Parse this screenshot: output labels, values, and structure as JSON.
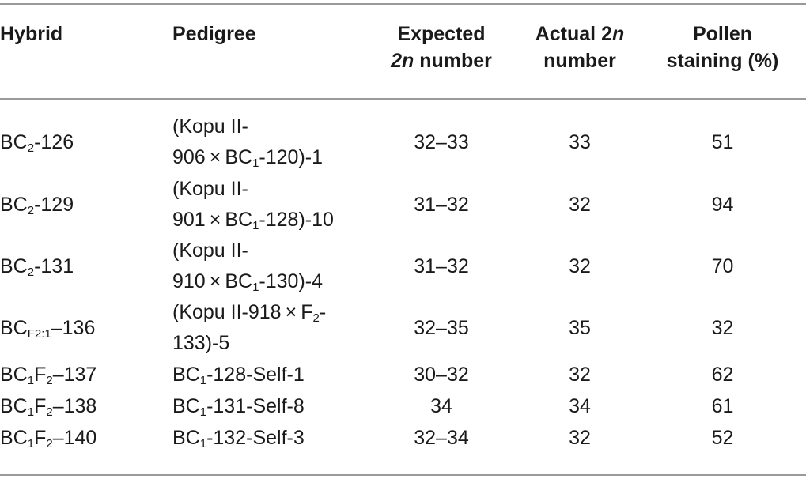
{
  "headers": {
    "hybrid": "Hybrid",
    "pedigree": "Pedigree",
    "expected_line1": "Expected",
    "expected_line2_italic": "2n",
    "expected_line2_rest": " number",
    "actual_line1_prefix": "Actual 2",
    "actual_line1_italic": "n",
    "actual_line2": "number",
    "pollen_line1": "Pollen",
    "pollen_line2": "staining (%)"
  },
  "rows": [
    {
      "hybrid": {
        "pre": "BC",
        "sub": "2",
        "post": "-126"
      },
      "pedigree": {
        "line1": "(Kopu II-",
        "line2_pre": "906 × BC",
        "line2_sub": "1",
        "line2_post": "-120)-1"
      },
      "expected": "32–33",
      "actual": "33",
      "pollen": "51"
    },
    {
      "hybrid": {
        "pre": "BC",
        "sub": "2",
        "post": "-129"
      },
      "pedigree": {
        "line1": "(Kopu II-",
        "line2_pre": "901 × BC",
        "line2_sub": "1",
        "line2_post": "-128)-10"
      },
      "expected": "31–32",
      "actual": "32",
      "pollen": "94"
    },
    {
      "hybrid": {
        "pre": "BC",
        "sub": "2",
        "post": "-131"
      },
      "pedigree": {
        "line1": "(Kopu II-",
        "line2_pre": "910 × BC",
        "line2_sub": "1",
        "line2_post": "-130)-4"
      },
      "expected": "31–32",
      "actual": "32",
      "pollen": "70"
    },
    {
      "hybrid": {
        "pre": "BC",
        "sub": "F2:1",
        "post": "–136"
      },
      "pedigree": {
        "line1_pre": "(Kopu II-918 × F",
        "line1_sub": "2",
        "line1_post": "-",
        "line2": "133)-5"
      },
      "expected": "32–35",
      "actual": "35",
      "pollen": "32"
    },
    {
      "hybrid": {
        "pre": "BC",
        "sub": "1",
        "mid": "F",
        "sub2": "2",
        "post": "–137"
      },
      "pedigree": {
        "pre": "BC",
        "sub": "1",
        "post": "-128-Self-1"
      },
      "expected": "30–32",
      "actual": "32",
      "pollen": "62"
    },
    {
      "hybrid": {
        "pre": "BC",
        "sub": "1",
        "mid": "F",
        "sub2": "2",
        "post": "–138"
      },
      "pedigree": {
        "pre": "BC",
        "sub": "1",
        "post": "-131-Self-8"
      },
      "expected": "34",
      "actual": "34",
      "pollen": "61"
    },
    {
      "hybrid": {
        "pre": "BC",
        "sub": "1",
        "mid": "F",
        "sub2": "2",
        "post": "–140"
      },
      "pedigree": {
        "pre": "BC",
        "sub": "1",
        "post": "-132-Self-3"
      },
      "expected": "32–34",
      "actual": "32",
      "pollen": "52"
    }
  ]
}
